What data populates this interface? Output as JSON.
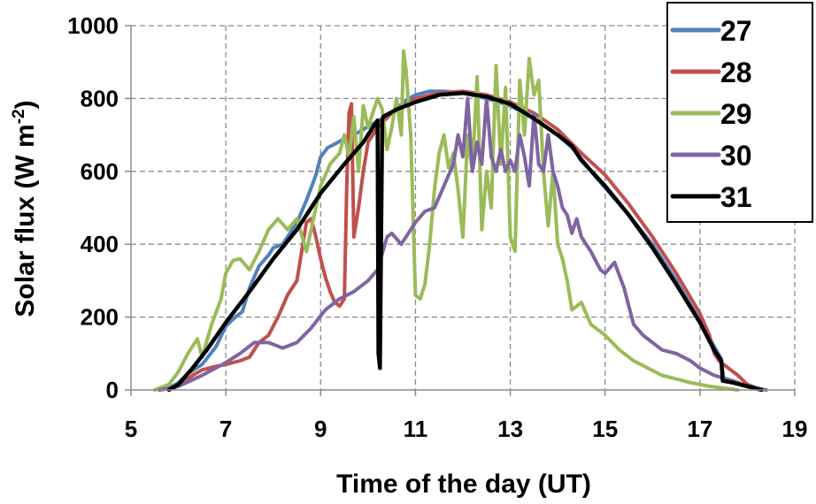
{
  "chart_data": {
    "type": "line",
    "xlabel": "Time of the day (UT)",
    "ylabel_main": "Solar flux (W m",
    "ylabel_sup": "-2",
    "ylabel_close": ")",
    "xlim": [
      5,
      19
    ],
    "ylim": [
      0,
      1000
    ],
    "xticks": [
      5,
      7,
      9,
      11,
      13,
      15,
      17,
      19
    ],
    "yticks": [
      0,
      200,
      400,
      600,
      800,
      1000
    ],
    "grid": true,
    "legend_position": "top-right",
    "series": [
      {
        "name": "27",
        "color": "#4f81bd",
        "points": [
          [
            5.6,
            0
          ],
          [
            5.8,
            5
          ],
          [
            6.0,
            20
          ],
          [
            6.2,
            45
          ],
          [
            6.5,
            70
          ],
          [
            6.8,
            120
          ],
          [
            7.0,
            175
          ],
          [
            7.2,
            200
          ],
          [
            7.35,
            215
          ],
          [
            7.5,
            280
          ],
          [
            7.7,
            340
          ],
          [
            7.9,
            370
          ],
          [
            8.0,
            390
          ],
          [
            8.2,
            400
          ],
          [
            8.35,
            430
          ],
          [
            8.5,
            460
          ],
          [
            8.7,
            520
          ],
          [
            8.9,
            590
          ],
          [
            9.0,
            640
          ],
          [
            9.15,
            665
          ],
          [
            9.3,
            675
          ],
          [
            9.5,
            690
          ],
          [
            9.7,
            700
          ],
          [
            9.9,
            715
          ],
          [
            10.1,
            730
          ],
          [
            10.3,
            745
          ],
          [
            10.5,
            760
          ],
          [
            10.8,
            795
          ],
          [
            11.0,
            810
          ],
          [
            11.3,
            820
          ],
          [
            11.6,
            820
          ],
          [
            12.0,
            815
          ],
          [
            12.5,
            800
          ],
          [
            13.0,
            780
          ],
          [
            13.5,
            745
          ],
          [
            14.0,
            700
          ],
          [
            14.3,
            665
          ],
          [
            14.5,
            635
          ],
          [
            14.8,
            585
          ],
          [
            15.0,
            555
          ],
          [
            15.5,
            480
          ],
          [
            16.0,
            400
          ],
          [
            16.5,
            300
          ],
          [
            17.0,
            190
          ],
          [
            17.3,
            120
          ],
          [
            17.45,
            85
          ],
          [
            17.5,
            30
          ],
          [
            17.7,
            20
          ],
          [
            18.0,
            10
          ],
          [
            18.3,
            0
          ]
        ]
      },
      {
        "name": "28",
        "color": "#c0504d",
        "points": [
          [
            5.6,
            0
          ],
          [
            5.9,
            5
          ],
          [
            6.1,
            20
          ],
          [
            6.3,
            40
          ],
          [
            6.5,
            55
          ],
          [
            6.8,
            65
          ],
          [
            7.0,
            70
          ],
          [
            7.3,
            80
          ],
          [
            7.5,
            90
          ],
          [
            7.7,
            130
          ],
          [
            7.9,
            150
          ],
          [
            8.1,
            200
          ],
          [
            8.3,
            260
          ],
          [
            8.5,
            300
          ],
          [
            8.7,
            460
          ],
          [
            8.8,
            470
          ],
          [
            8.9,
            420
          ],
          [
            9.0,
            360
          ],
          [
            9.1,
            310
          ],
          [
            9.2,
            270
          ],
          [
            9.3,
            240
          ],
          [
            9.4,
            230
          ],
          [
            9.5,
            250
          ],
          [
            9.55,
            560
          ],
          [
            9.6,
            760
          ],
          [
            9.65,
            785
          ],
          [
            9.7,
            420
          ],
          [
            9.8,
            500
          ],
          [
            9.9,
            600
          ],
          [
            10.0,
            680
          ],
          [
            10.2,
            720
          ],
          [
            10.5,
            760
          ],
          [
            11.0,
            800
          ],
          [
            11.5,
            815
          ],
          [
            12.0,
            820
          ],
          [
            12.5,
            810
          ],
          [
            13.0,
            790
          ],
          [
            13.5,
            760
          ],
          [
            14.0,
            715
          ],
          [
            14.5,
            650
          ],
          [
            15.0,
            590
          ],
          [
            15.5,
            510
          ],
          [
            16.0,
            420
          ],
          [
            16.5,
            320
          ],
          [
            17.0,
            210
          ],
          [
            17.2,
            150
          ],
          [
            17.3,
            100
          ],
          [
            17.4,
            80
          ],
          [
            17.6,
            60
          ],
          [
            17.8,
            40
          ],
          [
            18.0,
            15
          ],
          [
            18.3,
            0
          ]
        ]
      },
      {
        "name": "29",
        "color": "#9bbb59",
        "points": [
          [
            5.5,
            0
          ],
          [
            5.8,
            15
          ],
          [
            6.0,
            50
          ],
          [
            6.2,
            100
          ],
          [
            6.4,
            140
          ],
          [
            6.5,
            90
          ],
          [
            6.7,
            180
          ],
          [
            6.9,
            250
          ],
          [
            7.0,
            320
          ],
          [
            7.15,
            355
          ],
          [
            7.3,
            360
          ],
          [
            7.5,
            330
          ],
          [
            7.7,
            380
          ],
          [
            7.9,
            440
          ],
          [
            8.1,
            470
          ],
          [
            8.3,
            440
          ],
          [
            8.5,
            470
          ],
          [
            8.7,
            380
          ],
          [
            8.9,
            500
          ],
          [
            9.0,
            560
          ],
          [
            9.2,
            620
          ],
          [
            9.4,
            650
          ],
          [
            9.5,
            700
          ],
          [
            9.6,
            640
          ],
          [
            9.7,
            750
          ],
          [
            9.8,
            600
          ],
          [
            9.9,
            780
          ],
          [
            10.0,
            720
          ],
          [
            10.1,
            760
          ],
          [
            10.2,
            800
          ],
          [
            10.3,
            770
          ],
          [
            10.4,
            660
          ],
          [
            10.5,
            720
          ],
          [
            10.6,
            800
          ],
          [
            10.7,
            700
          ],
          [
            10.75,
            930
          ],
          [
            10.8,
            880
          ],
          [
            10.9,
            700
          ],
          [
            11.0,
            260
          ],
          [
            11.1,
            250
          ],
          [
            11.2,
            290
          ],
          [
            11.3,
            400
          ],
          [
            11.4,
            550
          ],
          [
            11.5,
            650
          ],
          [
            11.6,
            700
          ],
          [
            11.7,
            610
          ],
          [
            11.8,
            650
          ],
          [
            11.9,
            550
          ],
          [
            12.0,
            420
          ],
          [
            12.1,
            700
          ],
          [
            12.2,
            600
          ],
          [
            12.3,
            860
          ],
          [
            12.4,
            440
          ],
          [
            12.5,
            600
          ],
          [
            12.6,
            500
          ],
          [
            12.7,
            890
          ],
          [
            12.8,
            620
          ],
          [
            12.9,
            830
          ],
          [
            13.0,
            420
          ],
          [
            13.1,
            380
          ],
          [
            13.2,
            850
          ],
          [
            13.3,
            700
          ],
          [
            13.4,
            910
          ],
          [
            13.5,
            810
          ],
          [
            13.6,
            850
          ],
          [
            13.7,
            600
          ],
          [
            13.8,
            450
          ],
          [
            13.9,
            600
          ],
          [
            14.0,
            400
          ],
          [
            14.1,
            360
          ],
          [
            14.2,
            300
          ],
          [
            14.3,
            220
          ],
          [
            14.5,
            240
          ],
          [
            14.7,
            180
          ],
          [
            15.0,
            150
          ],
          [
            15.3,
            110
          ],
          [
            15.6,
            80
          ],
          [
            15.9,
            60
          ],
          [
            16.2,
            40
          ],
          [
            16.5,
            30
          ],
          [
            16.8,
            20
          ],
          [
            17.2,
            10
          ],
          [
            17.8,
            0
          ]
        ]
      },
      {
        "name": "30",
        "color": "#8064a2",
        "points": [
          [
            5.6,
            0
          ],
          [
            6.0,
            10
          ],
          [
            6.5,
            40
          ],
          [
            7.0,
            75
          ],
          [
            7.3,
            100
          ],
          [
            7.6,
            130
          ],
          [
            7.9,
            130
          ],
          [
            8.2,
            115
          ],
          [
            8.5,
            130
          ],
          [
            8.8,
            170
          ],
          [
            9.1,
            220
          ],
          [
            9.4,
            250
          ],
          [
            9.7,
            270
          ],
          [
            10.0,
            300
          ],
          [
            10.2,
            330
          ],
          [
            10.4,
            420
          ],
          [
            10.5,
            430
          ],
          [
            10.7,
            400
          ],
          [
            10.9,
            440
          ],
          [
            11.0,
            460
          ],
          [
            11.2,
            490
          ],
          [
            11.4,
            500
          ],
          [
            11.6,
            560
          ],
          [
            11.8,
            620
          ],
          [
            11.9,
            700
          ],
          [
            12.0,
            640
          ],
          [
            12.1,
            800
          ],
          [
            12.2,
            600
          ],
          [
            12.3,
            680
          ],
          [
            12.4,
            620
          ],
          [
            12.5,
            800
          ],
          [
            12.6,
            640
          ],
          [
            12.7,
            600
          ],
          [
            12.8,
            660
          ],
          [
            12.9,
            600
          ],
          [
            13.0,
            630
          ],
          [
            13.1,
            600
          ],
          [
            13.2,
            700
          ],
          [
            13.3,
            640
          ],
          [
            13.4,
            560
          ],
          [
            13.5,
            760
          ],
          [
            13.6,
            620
          ],
          [
            13.7,
            600
          ],
          [
            13.8,
            700
          ],
          [
            13.9,
            600
          ],
          [
            14.0,
            560
          ],
          [
            14.1,
            500
          ],
          [
            14.2,
            480
          ],
          [
            14.3,
            430
          ],
          [
            14.4,
            470
          ],
          [
            14.5,
            420
          ],
          [
            14.7,
            380
          ],
          [
            14.9,
            330
          ],
          [
            15.0,
            320
          ],
          [
            15.2,
            350
          ],
          [
            15.4,
            280
          ],
          [
            15.5,
            230
          ],
          [
            15.6,
            180
          ],
          [
            15.8,
            150
          ],
          [
            16.0,
            130
          ],
          [
            16.2,
            110
          ],
          [
            16.5,
            100
          ],
          [
            16.8,
            80
          ],
          [
            17.0,
            60
          ],
          [
            17.3,
            40
          ],
          [
            17.7,
            25
          ],
          [
            18.0,
            10
          ],
          [
            18.4,
            0
          ]
        ]
      },
      {
        "name": "31",
        "color": "#000000",
        "points": [
          [
            5.8,
            0
          ],
          [
            6.0,
            15
          ],
          [
            6.3,
            60
          ],
          [
            6.6,
            110
          ],
          [
            7.0,
            185
          ],
          [
            7.5,
            270
          ],
          [
            8.0,
            360
          ],
          [
            8.5,
            440
          ],
          [
            9.0,
            540
          ],
          [
            9.5,
            620
          ],
          [
            9.9,
            680
          ],
          [
            10.1,
            720
          ],
          [
            10.2,
            740
          ],
          [
            10.22,
            100
          ],
          [
            10.25,
            60
          ],
          [
            10.3,
            740
          ],
          [
            10.32,
            750
          ],
          [
            10.6,
            770
          ],
          [
            11.0,
            790
          ],
          [
            11.5,
            810
          ],
          [
            12.0,
            815
          ],
          [
            12.5,
            805
          ],
          [
            13.0,
            785
          ],
          [
            13.5,
            745
          ],
          [
            14.0,
            700
          ],
          [
            14.3,
            670
          ],
          [
            14.5,
            630
          ],
          [
            15.0,
            560
          ],
          [
            15.5,
            480
          ],
          [
            16.0,
            390
          ],
          [
            16.5,
            290
          ],
          [
            17.0,
            185
          ],
          [
            17.3,
            110
          ],
          [
            17.45,
            80
          ],
          [
            17.48,
            25
          ],
          [
            17.7,
            20
          ],
          [
            18.0,
            10
          ],
          [
            18.3,
            0
          ]
        ]
      }
    ]
  }
}
